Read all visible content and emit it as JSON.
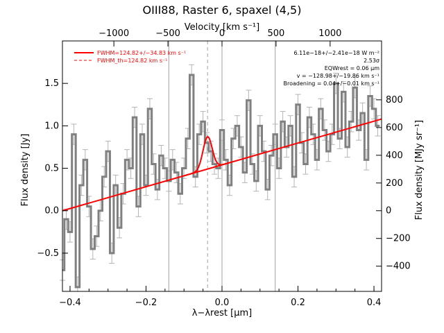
{
  "chart_data": {
    "type": "line",
    "title": "OIII88, Raster 6, spaxel (4,5)",
    "xlabel": "λ−λrest [μm]",
    "ylabel": "Flux density [Jy]",
    "ylabel_right": "Flux density [MJy sr⁻¹]",
    "xlabel_top": "Velocity [km s⁻¹]",
    "xlim": [
      -0.42,
      0.42
    ],
    "ylim": [
      -0.95,
      2.0
    ],
    "xticks": [
      -0.4,
      -0.2,
      0.0,
      0.2,
      0.4
    ],
    "xtick_labels": [
      "−0.4",
      "−0.2",
      "0.0",
      "0.2",
      "0.4"
    ],
    "yticks": [
      -0.5,
      0.0,
      0.5,
      1.0,
      1.5
    ],
    "ytick_labels": [
      "−0.5",
      "0.0",
      "0.5",
      "1.0",
      "1.5"
    ],
    "right_axis": {
      "ticks": [
        -400,
        -200,
        0,
        200,
        400,
        600,
        800
      ],
      "tick_labels": [
        "−400",
        "−200",
        "0",
        "200",
        "400",
        "600",
        "800"
      ],
      "jy_per_unit": 0.001633
    },
    "top_axis": {
      "ticks": [
        -1000,
        -500,
        0,
        500,
        1000
      ],
      "tick_labels": [
        "−1000",
        "−500",
        "0",
        "500",
        "1000"
      ],
      "um_per_kms": 0.0002846
    },
    "vlines_solid": [
      -0.14,
      0.0,
      0.14
    ],
    "vline_dashed": -0.038,
    "continuum": {
      "x0": -0.42,
      "y0": 0.0,
      "x1": 0.42,
      "y1": 1.08
    },
    "line_fit": {
      "center": -0.038,
      "amplitude": 0.38,
      "sigma": 0.012
    },
    "spectrum": {
      "x": [
        -0.42,
        -0.41,
        -0.4,
        -0.39,
        -0.38,
        -0.37,
        -0.36,
        -0.35,
        -0.34,
        -0.33,
        -0.32,
        -0.31,
        -0.3,
        -0.29,
        -0.28,
        -0.27,
        -0.26,
        -0.25,
        -0.24,
        -0.23,
        -0.22,
        -0.21,
        -0.2,
        -0.19,
        -0.18,
        -0.17,
        -0.16,
        -0.15,
        -0.14,
        -0.13,
        -0.12,
        -0.11,
        -0.1,
        -0.09,
        -0.08,
        -0.07,
        -0.06,
        -0.05,
        -0.04,
        -0.03,
        -0.02,
        -0.01,
        0.0,
        0.01,
        0.02,
        0.03,
        0.04,
        0.05,
        0.06,
        0.07,
        0.08,
        0.09,
        0.1,
        0.11,
        0.12,
        0.13,
        0.14,
        0.15,
        0.16,
        0.17,
        0.18,
        0.19,
        0.2,
        0.21,
        0.22,
        0.23,
        0.24,
        0.25,
        0.26,
        0.27,
        0.28,
        0.29,
        0.3,
        0.31,
        0.32,
        0.33,
        0.34,
        0.35,
        0.36,
        0.37,
        0.38,
        0.39,
        0.4,
        0.41
      ],
      "y": [
        -0.7,
        -0.1,
        -0.25,
        0.9,
        -0.9,
        0.3,
        0.6,
        0.05,
        -0.45,
        -0.3,
        0.0,
        0.4,
        0.7,
        -0.5,
        0.3,
        -0.2,
        0.2,
        0.6,
        0.5,
        1.1,
        0.05,
        0.9,
        0.3,
        1.2,
        0.55,
        0.25,
        0.65,
        0.5,
        0.35,
        0.6,
        0.45,
        0.2,
        0.5,
        0.85,
        1.6,
        0.4,
        0.9,
        1.05,
        0.8,
        0.7,
        0.55,
        0.5,
        0.95,
        0.6,
        0.3,
        0.85,
        1.0,
        0.75,
        0.45,
        1.3,
        0.55,
        0.35,
        1.0,
        0.7,
        0.25,
        0.65,
        0.9,
        0.5,
        1.05,
        0.75,
        1.0,
        0.4,
        1.25,
        0.8,
        0.55,
        1.1,
        0.9,
        0.6,
        1.2,
        0.95,
        0.7,
        0.9,
        1.5,
        0.85,
        1.4,
        0.75,
        1.05,
        1.45,
        0.95,
        1.15,
        0.6,
        1.35,
        1.2,
        1.0
      ],
      "err": 0.12
    },
    "legend": [
      {
        "label": "FWHM=124.82+/−34.83 km s⁻¹",
        "style": "solid",
        "color": "#ff0000"
      },
      {
        "label": "FWHM_th=124.82 km s⁻¹",
        "style": "dashed",
        "color": "#ff0000"
      }
    ],
    "annotations": [
      "6.11e−18+/−2.41e−18 W m⁻²",
      "2.53σ",
      "EQWrest = 0.06 μm",
      "v = −128.98+/−19.86 km s⁻¹",
      "Broadening = 0.04+/−0.01 km s⁻¹"
    ],
    "colors": {
      "fit": "#ff0000",
      "spectrum": "#808080",
      "errorbar": "#b4b4b4",
      "vline": "#a0a0a0"
    }
  }
}
